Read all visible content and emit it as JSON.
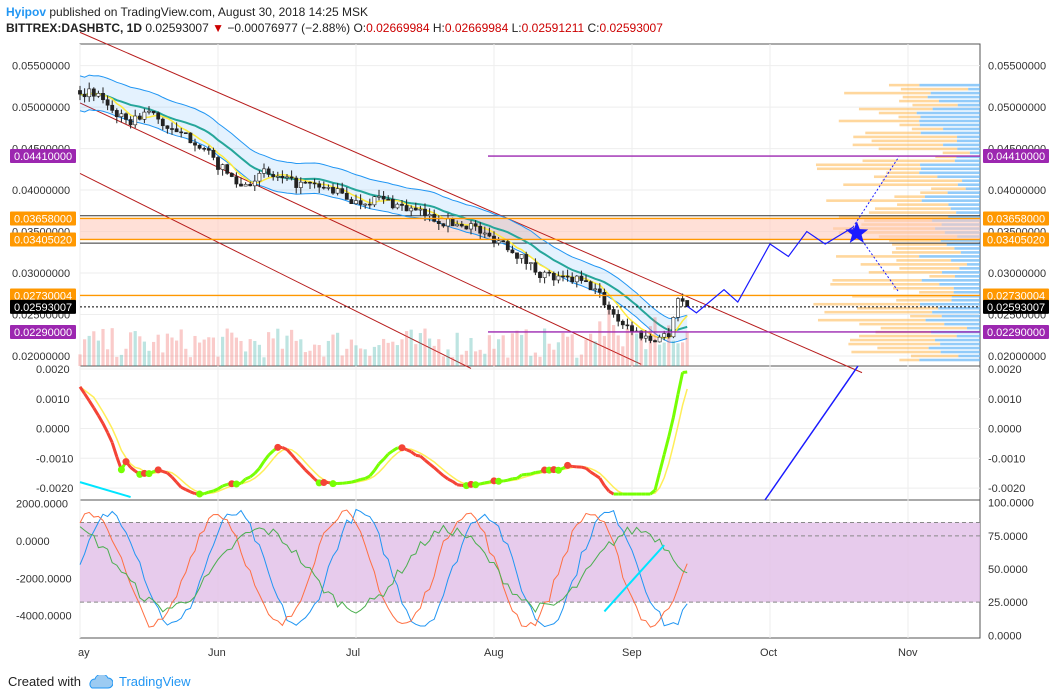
{
  "header": {
    "author": "Hyipov",
    "published": "published on TradingView.com, August 30, 2018 14:25 MSK",
    "symbol": "BITTREX:DASHBTC, 1D",
    "last": "0.02593007",
    "change_arrow": "▼",
    "change": "−0.00076977 (−2.88%)",
    "o_label": "O:",
    "o_val": "0.02669984",
    "h_label": "H:",
    "h_val": "0.02669984",
    "l_label": "L:",
    "l_val": "0.02591211",
    "c_label": "C:",
    "c_val": "0.02593007"
  },
  "footer": {
    "created": "Created with",
    "brand": "TradingView"
  },
  "colors": {
    "up": "#26a69a",
    "down": "#ef5350",
    "purple": "#9c27b0",
    "orange": "#ff9800",
    "band": "#2196f3",
    "ma_yellow": "#ffeb3b",
    "ma_teal": "#26a69a",
    "channel": "#b71c1c",
    "projection": "#1a1aff",
    "star": "#1a1aff",
    "profile_orange": "#ffb74d",
    "profile_blue": "#64b5f6"
  },
  "chart_data": [
    {
      "type": "candlestick",
      "panel": "price",
      "y_ticks": [
        "0.05500000",
        "0.05000000",
        "0.04500000",
        "0.04000000",
        "0.03500000",
        "0.03000000",
        "0.02500000",
        "0.02000000"
      ],
      "y_tick_values": [
        0.055,
        0.05,
        0.045,
        0.04,
        0.035,
        0.03,
        0.025,
        0.02
      ],
      "ylim": [
        0.0188,
        0.0576
      ],
      "x_labels": [
        "ay",
        "Jun",
        "Jul",
        "Aug",
        "Sep",
        "Oct",
        "Nov"
      ],
      "price_path": [
        [
          0,
          0.052
        ],
        [
          5,
          0.051
        ],
        [
          10,
          0.048
        ],
        [
          15,
          0.0495
        ],
        [
          20,
          0.047
        ],
        [
          25,
          0.046
        ],
        [
          30,
          0.043
        ],
        [
          35,
          0.0405
        ],
        [
          40,
          0.042
        ],
        [
          45,
          0.041
        ],
        [
          50,
          0.0405
        ],
        [
          55,
          0.04
        ],
        [
          60,
          0.0385
        ],
        [
          65,
          0.039
        ],
        [
          70,
          0.038
        ],
        [
          75,
          0.037
        ],
        [
          80,
          0.036
        ],
        [
          85,
          0.0358
        ],
        [
          88,
          0.0345
        ],
        [
          92,
          0.0338
        ],
        [
          96,
          0.0318
        ],
        [
          100,
          0.03
        ],
        [
          104,
          0.0292
        ],
        [
          108,
          0.0292
        ],
        [
          112,
          0.028
        ],
        [
          114,
          0.0265
        ],
        [
          116,
          0.025
        ],
        [
          118,
          0.024
        ],
        [
          120,
          0.0232
        ],
        [
          122,
          0.0225
        ],
        [
          124,
          0.022
        ],
        [
          126,
          0.0223
        ],
        [
          128,
          0.0228
        ],
        [
          130,
          0.027
        ],
        [
          132,
          0.026
        ]
      ],
      "support_resistance": [
        {
          "label": "0.04410000",
          "value": 0.0441,
          "color": "#9c27b0"
        },
        {
          "label": "0.03658000",
          "value": 0.03658,
          "color": "#ff9800"
        },
        {
          "label": "0.03405020",
          "value": 0.0340502,
          "color": "#ff9800"
        },
        {
          "label": "0.02730004",
          "value": 0.02730004,
          "color": "#ff9800"
        },
        {
          "label": "0.02593007",
          "value": 0.02593007,
          "color": "#000000"
        },
        {
          "label": "0.02290000",
          "value": 0.0229,
          "color": "#9c27b0"
        }
      ],
      "projection_path": [
        [
          132,
          0.026
        ],
        [
          134,
          0.0252
        ],
        [
          140,
          0.028
        ],
        [
          143,
          0.0265
        ],
        [
          150,
          0.0335
        ],
        [
          154,
          0.032
        ],
        [
          158,
          0.035
        ],
        [
          162,
          0.0335
        ],
        [
          168,
          0.0355
        ]
      ],
      "projection_targets": [
        {
          "to": [
            178,
            0.044
          ]
        },
        {
          "to": [
            178,
            0.0277
          ]
        }
      ]
    },
    {
      "type": "line",
      "panel": "oscillator_1",
      "y_ticks": [
        "0.0020",
        "0.0010",
        "0.0000",
        "-0.0010",
        "-0.0020"
      ],
      "y_tick_values": [
        0.002,
        0.001,
        0,
        -0.001,
        -0.002
      ],
      "ylim": [
        -0.0024,
        0.0021
      ]
    },
    {
      "type": "line",
      "panel": "oscillator_2",
      "y_ticks_left": [
        "2000.0000",
        "0.0000",
        "-2000.0000",
        "-4000.0000"
      ],
      "y_ticks_left_values": [
        2000,
        0,
        -2000,
        -4000
      ],
      "ylim_left": [
        -5200,
        2200
      ],
      "y_ticks_right": [
        "100.0000",
        "75.0000",
        "50.0000",
        "25.0000",
        "0.0000"
      ],
      "y_ticks_right_values": [
        100,
        75,
        50,
        25,
        0
      ],
      "ylim_right": [
        -2,
        102
      ],
      "band": [
        25,
        85
      ]
    }
  ]
}
